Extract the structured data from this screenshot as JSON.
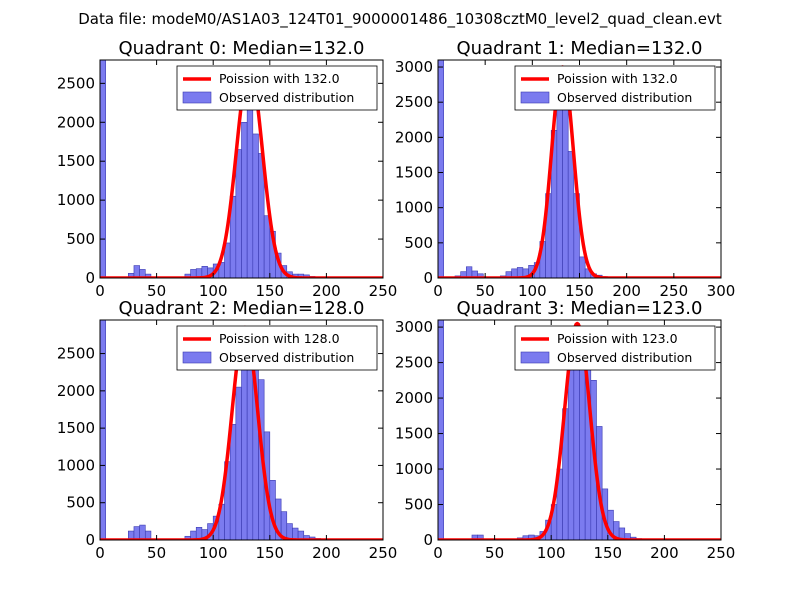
{
  "suptitle": "Data file: modeM0/AS1A03_124T01_9000001486_10308cztM0_level2_quad_clean.evt",
  "chart_data": [
    {
      "type": "bar",
      "title": "Quadrant 0: Median=132.0",
      "xlim": [
        0,
        250
      ],
      "ylim": [
        0,
        2800
      ],
      "xticks": [
        0,
        50,
        100,
        150,
        200,
        250
      ],
      "yticks": [
        0,
        500,
        1000,
        1500,
        2000,
        2500
      ],
      "legend": {
        "placement": "top-right",
        "entries": [
          "Poission with 132.0",
          "Observed distribution"
        ]
      },
      "histogram": {
        "bin_width": 5,
        "bins": [
          [
            0,
            2800
          ],
          [
            5,
            0
          ],
          [
            10,
            0
          ],
          [
            15,
            0
          ],
          [
            20,
            0
          ],
          [
            25,
            60
          ],
          [
            30,
            160
          ],
          [
            35,
            110
          ],
          [
            40,
            50
          ],
          [
            45,
            0
          ],
          [
            50,
            0
          ],
          [
            55,
            0
          ],
          [
            60,
            0
          ],
          [
            65,
            0
          ],
          [
            70,
            0
          ],
          [
            75,
            50
          ],
          [
            80,
            110
          ],
          [
            85,
            120
          ],
          [
            90,
            150
          ],
          [
            95,
            130
          ],
          [
            100,
            180
          ],
          [
            105,
            200
          ],
          [
            110,
            450
          ],
          [
            115,
            1050
          ],
          [
            120,
            1650
          ],
          [
            125,
            2000
          ],
          [
            130,
            2250
          ],
          [
            135,
            1850
          ],
          [
            140,
            1600
          ],
          [
            145,
            800
          ],
          [
            150,
            600
          ],
          [
            155,
            320
          ],
          [
            160,
            160
          ],
          [
            165,
            80
          ],
          [
            170,
            50
          ],
          [
            175,
            50
          ],
          [
            180,
            40
          ],
          [
            185,
            20
          ],
          [
            190,
            10
          ],
          [
            195,
            0
          ]
        ]
      },
      "model": {
        "name": "Poission with 132.0",
        "mean": 132.0,
        "peak": 2700
      },
      "colors": {
        "bars": "#7b7bef",
        "curve": "#ff0000"
      }
    },
    {
      "type": "bar",
      "title": "Quadrant 1: Median=132.0",
      "xlim": [
        0,
        300
      ],
      "ylim": [
        0,
        3100
      ],
      "xticks": [
        0,
        50,
        100,
        150,
        200,
        250,
        300
      ],
      "yticks": [
        0,
        500,
        1000,
        1500,
        2000,
        2500,
        3000
      ],
      "legend": {
        "placement": "top-right",
        "entries": [
          "Poission with 132.0",
          "Observed distribution"
        ]
      },
      "histogram": {
        "bin_width": 6,
        "bins": [
          [
            0,
            3100
          ],
          [
            6,
            0
          ],
          [
            12,
            0
          ],
          [
            18,
            30
          ],
          [
            24,
            90
          ],
          [
            30,
            160
          ],
          [
            36,
            100
          ],
          [
            42,
            60
          ],
          [
            48,
            0
          ],
          [
            54,
            0
          ],
          [
            60,
            0
          ],
          [
            66,
            30
          ],
          [
            72,
            90
          ],
          [
            78,
            130
          ],
          [
            84,
            150
          ],
          [
            90,
            130
          ],
          [
            96,
            180
          ],
          [
            102,
            220
          ],
          [
            108,
            520
          ],
          [
            114,
            1200
          ],
          [
            120,
            2100
          ],
          [
            126,
            2700
          ],
          [
            132,
            2450
          ],
          [
            138,
            1800
          ],
          [
            144,
            1200
          ],
          [
            150,
            300
          ],
          [
            156,
            130
          ],
          [
            162,
            60
          ],
          [
            168,
            40
          ],
          [
            174,
            20
          ],
          [
            180,
            0
          ]
        ]
      },
      "model": {
        "name": "Poission with 132.0",
        "mean": 132.0,
        "peak": 3000
      },
      "colors": {
        "bars": "#7b7bef",
        "curve": "#ff0000"
      }
    },
    {
      "type": "bar",
      "title": "Quadrant 2: Median=128.0",
      "xlim": [
        0,
        250
      ],
      "ylim": [
        0,
        2950
      ],
      "xticks": [
        0,
        50,
        100,
        150,
        200,
        250
      ],
      "yticks": [
        0,
        500,
        1000,
        1500,
        2000,
        2500
      ],
      "legend": {
        "placement": "top-right",
        "entries": [
          "Poission with 128.0",
          "Observed distribution"
        ]
      },
      "histogram": {
        "bin_width": 5,
        "bins": [
          [
            0,
            2950
          ],
          [
            5,
            0
          ],
          [
            10,
            0
          ],
          [
            15,
            0
          ],
          [
            20,
            0
          ],
          [
            25,
            120
          ],
          [
            30,
            180
          ],
          [
            35,
            200
          ],
          [
            40,
            120
          ],
          [
            45,
            0
          ],
          [
            50,
            0
          ],
          [
            55,
            0
          ],
          [
            60,
            0
          ],
          [
            65,
            0
          ],
          [
            70,
            0
          ],
          [
            75,
            50
          ],
          [
            80,
            120
          ],
          [
            85,
            170
          ],
          [
            90,
            140
          ],
          [
            95,
            220
          ],
          [
            100,
            320
          ],
          [
            105,
            480
          ],
          [
            110,
            1050
          ],
          [
            115,
            1550
          ],
          [
            120,
            2050
          ],
          [
            125,
            2550
          ],
          [
            130,
            2600
          ],
          [
            135,
            2800
          ],
          [
            140,
            2150
          ],
          [
            145,
            1450
          ],
          [
            150,
            800
          ],
          [
            155,
            550
          ],
          [
            160,
            380
          ],
          [
            165,
            220
          ],
          [
            170,
            160
          ],
          [
            175,
            120
          ],
          [
            180,
            60
          ],
          [
            185,
            40
          ],
          [
            190,
            20
          ],
          [
            195,
            0
          ]
        ]
      },
      "model": {
        "name": "Poission with 128.0",
        "mean": 128.0,
        "peak": 2850
      },
      "colors": {
        "bars": "#7b7bef",
        "curve": "#ff0000"
      }
    },
    {
      "type": "bar",
      "title": "Quadrant 3: Median=123.0",
      "xlim": [
        0,
        250
      ],
      "ylim": [
        0,
        3100
      ],
      "xticks": [
        0,
        50,
        100,
        150,
        200,
        250
      ],
      "yticks": [
        0,
        500,
        1000,
        1500,
        2000,
        2500,
        3000
      ],
      "legend": {
        "placement": "top-right",
        "entries": [
          "Poission with 123.0",
          "Observed distribution"
        ]
      },
      "histogram": {
        "bin_width": 5,
        "bins": [
          [
            0,
            3100
          ],
          [
            5,
            0
          ],
          [
            10,
            0
          ],
          [
            15,
            0
          ],
          [
            20,
            0
          ],
          [
            25,
            0
          ],
          [
            30,
            70
          ],
          [
            35,
            70
          ],
          [
            40,
            0
          ],
          [
            45,
            0
          ],
          [
            50,
            0
          ],
          [
            55,
            0
          ],
          [
            60,
            0
          ],
          [
            65,
            0
          ],
          [
            70,
            30
          ],
          [
            75,
            60
          ],
          [
            80,
            70
          ],
          [
            85,
            60
          ],
          [
            90,
            120
          ],
          [
            95,
            280
          ],
          [
            100,
            500
          ],
          [
            105,
            1000
          ],
          [
            110,
            1850
          ],
          [
            115,
            2600
          ],
          [
            120,
            3000
          ],
          [
            125,
            2800
          ],
          [
            130,
            2550
          ],
          [
            135,
            2250
          ],
          [
            140,
            1600
          ],
          [
            145,
            720
          ],
          [
            150,
            420
          ],
          [
            155,
            260
          ],
          [
            160,
            170
          ],
          [
            165,
            90
          ],
          [
            170,
            40
          ],
          [
            175,
            20
          ],
          [
            180,
            10
          ],
          [
            185,
            0
          ],
          [
            190,
            0
          ],
          [
            195,
            0
          ]
        ]
      },
      "model": {
        "name": "Poission with 123.0",
        "mean": 123.0,
        "peak": 3050
      },
      "colors": {
        "bars": "#7b7bef",
        "curve": "#ff0000"
      }
    }
  ]
}
